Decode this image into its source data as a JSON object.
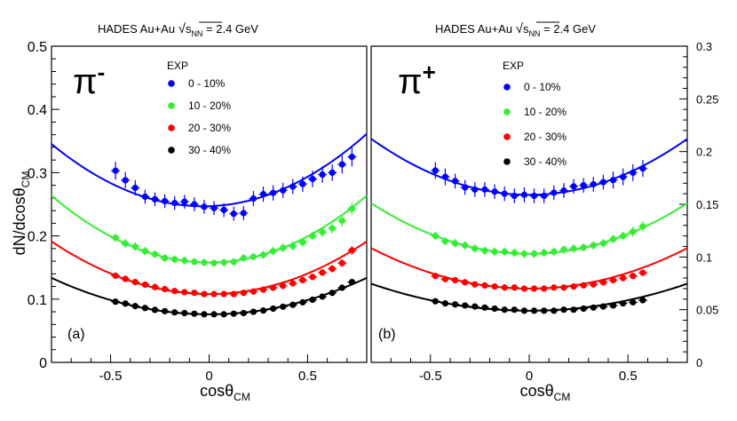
{
  "chart_data": [
    {
      "type": "scatter",
      "panel_label": "(a)",
      "header": {
        "experiment": "HADES",
        "system": "Au+Au",
        "energy": "= 2.4 GeV",
        "sqrt_symbol": "√",
        "sqrt_s": "s",
        "sqrt_sub": "NN"
      },
      "particle": {
        "symbol": "π",
        "charge": "-"
      },
      "xlabel": "cosθ",
      "xlabel_sub": "CM",
      "ylabel": "dN/dcosθ",
      "ylabel_sub": "CM",
      "xlim": [
        -0.8,
        0.8
      ],
      "ylim": [
        0,
        0.5
      ],
      "x_ticks": [
        "-0.5",
        "0",
        "0.5"
      ],
      "y_ticks": [
        "0",
        "0.1",
        "0.2",
        "0.3",
        "0.4",
        "0.5"
      ],
      "y_tick_values": [
        0,
        0.1,
        0.2,
        0.3,
        0.4,
        0.5
      ],
      "legend_title": "EXP",
      "legend_placement": "top-center",
      "series": [
        {
          "name": "0 - 10%",
          "color": "#0000ff",
          "fit": [
            0.247,
            0.01,
            0.166
          ],
          "x": [
            -0.475,
            -0.425,
            -0.375,
            -0.325,
            -0.275,
            -0.225,
            -0.175,
            -0.125,
            -0.075,
            -0.025,
            0.025,
            0.075,
            0.125,
            0.175,
            0.225,
            0.275,
            0.325,
            0.375,
            0.425,
            0.475,
            0.525,
            0.575,
            0.625,
            0.675,
            0.725
          ],
          "y": [
            0.303,
            0.288,
            0.276,
            0.262,
            0.258,
            0.255,
            0.252,
            0.254,
            0.25,
            0.246,
            0.244,
            0.241,
            0.235,
            0.236,
            0.259,
            0.266,
            0.268,
            0.272,
            0.278,
            0.282,
            0.29,
            0.297,
            0.3,
            0.313,
            0.325
          ],
          "err": [
            0.014,
            0.013,
            0.012,
            0.011,
            0.011,
            0.011,
            0.011,
            0.011,
            0.011,
            0.011,
            0.011,
            0.011,
            0.011,
            0.011,
            0.012,
            0.012,
            0.012,
            0.012,
            0.012,
            0.012,
            0.013,
            0.013,
            0.013,
            0.014,
            0.015
          ]
        },
        {
          "name": "10 - 20%",
          "color": "#33ee33",
          "fit": [
            0.158,
            0.0,
            0.165
          ],
          "x": [
            -0.475,
            -0.425,
            -0.375,
            -0.325,
            -0.275,
            -0.225,
            -0.175,
            -0.125,
            -0.075,
            -0.025,
            0.025,
            0.075,
            0.125,
            0.175,
            0.225,
            0.275,
            0.325,
            0.375,
            0.425,
            0.475,
            0.525,
            0.575,
            0.625,
            0.675,
            0.725
          ],
          "y": [
            0.197,
            0.188,
            0.183,
            0.176,
            0.171,
            0.165,
            0.163,
            0.161,
            0.159,
            0.158,
            0.157,
            0.158,
            0.159,
            0.165,
            0.167,
            0.17,
            0.176,
            0.181,
            0.184,
            0.19,
            0.2,
            0.206,
            0.212,
            0.224,
            0.243
          ],
          "err": [
            0.007,
            0.007,
            0.007,
            0.007,
            0.006,
            0.006,
            0.006,
            0.006,
            0.006,
            0.006,
            0.006,
            0.006,
            0.006,
            0.006,
            0.006,
            0.006,
            0.007,
            0.007,
            0.007,
            0.007,
            0.007,
            0.008,
            0.008,
            0.009,
            0.01
          ]
        },
        {
          "name": "20 - 30%",
          "color": "#ff0000",
          "fit": [
            0.108,
            0.0,
            0.13
          ],
          "x": [
            -0.475,
            -0.425,
            -0.375,
            -0.325,
            -0.275,
            -0.225,
            -0.175,
            -0.125,
            -0.075,
            -0.025,
            0.025,
            0.075,
            0.125,
            0.175,
            0.225,
            0.275,
            0.325,
            0.375,
            0.425,
            0.475,
            0.525,
            0.575,
            0.625,
            0.675,
            0.725
          ],
          "y": [
            0.137,
            0.132,
            0.127,
            0.123,
            0.119,
            0.116,
            0.113,
            0.111,
            0.11,
            0.108,
            0.108,
            0.108,
            0.108,
            0.11,
            0.112,
            0.115,
            0.118,
            0.121,
            0.125,
            0.13,
            0.135,
            0.142,
            0.148,
            0.157,
            0.177
          ],
          "err": [
            0.005,
            0.005,
            0.005,
            0.005,
            0.004,
            0.004,
            0.004,
            0.004,
            0.004,
            0.004,
            0.004,
            0.004,
            0.004,
            0.004,
            0.004,
            0.004,
            0.004,
            0.005,
            0.005,
            0.005,
            0.005,
            0.005,
            0.006,
            0.006,
            0.007
          ]
        },
        {
          "name": "30 - 40%",
          "color": "#000000",
          "fit": [
            0.076,
            0.0,
            0.09
          ],
          "x": [
            -0.475,
            -0.425,
            -0.375,
            -0.325,
            -0.275,
            -0.225,
            -0.175,
            -0.125,
            -0.075,
            -0.025,
            0.025,
            0.075,
            0.125,
            0.175,
            0.225,
            0.275,
            0.325,
            0.375,
            0.425,
            0.475,
            0.525,
            0.575,
            0.625,
            0.675,
            0.725
          ],
          "y": [
            0.096,
            0.093,
            0.089,
            0.086,
            0.083,
            0.081,
            0.079,
            0.078,
            0.077,
            0.076,
            0.076,
            0.076,
            0.077,
            0.078,
            0.08,
            0.082,
            0.085,
            0.088,
            0.091,
            0.095,
            0.099,
            0.104,
            0.11,
            0.118,
            0.127
          ],
          "err": [
            0.003,
            0.003,
            0.003,
            0.003,
            0.003,
            0.003,
            0.003,
            0.003,
            0.003,
            0.003,
            0.003,
            0.003,
            0.003,
            0.003,
            0.003,
            0.003,
            0.003,
            0.003,
            0.003,
            0.003,
            0.003,
            0.003,
            0.004,
            0.004,
            0.004
          ]
        }
      ]
    },
    {
      "type": "scatter",
      "panel_label": "(b)",
      "header": {
        "experiment": "HADES",
        "system": "Au+Au",
        "energy": "= 2.4 GeV",
        "sqrt_symbol": "√",
        "sqrt_s": "s",
        "sqrt_sub": "NN"
      },
      "particle": {
        "symbol": "π",
        "charge": "+"
      },
      "xlabel": "cosθ",
      "xlabel_sub": "CM",
      "ylabel": "",
      "ylabel_sub": "",
      "xlim": [
        -0.8,
        0.8
      ],
      "ylim": [
        0,
        0.3
      ],
      "x_ticks": [
        "-0.5",
        "0",
        "0.5"
      ],
      "y_ticks": [
        "0",
        "0.05",
        "0.1",
        "0.15",
        "0.2",
        "0.25",
        "0.3"
      ],
      "y_tick_values": [
        0,
        0.05,
        0.1,
        0.15,
        0.2,
        0.25,
        0.3
      ],
      "legend_title": "EXP",
      "legend_placement": "top-center",
      "series": [
        {
          "name": "0 - 10%",
          "color": "#0000ff",
          "fit": [
            0.159,
            0.0,
            0.083
          ],
          "x": [
            -0.475,
            -0.425,
            -0.375,
            -0.325,
            -0.275,
            -0.225,
            -0.175,
            -0.125,
            -0.075,
            -0.025,
            0.025,
            0.075,
            0.125,
            0.175,
            0.225,
            0.275,
            0.325,
            0.375,
            0.425,
            0.475,
            0.525,
            0.575
          ],
          "y": [
            0.182,
            0.176,
            0.172,
            0.166,
            0.164,
            0.164,
            0.162,
            0.16,
            0.158,
            0.159,
            0.158,
            0.158,
            0.161,
            0.163,
            0.167,
            0.168,
            0.169,
            0.171,
            0.173,
            0.176,
            0.18,
            0.184
          ],
          "err": [
            0.008,
            0.008,
            0.007,
            0.007,
            0.007,
            0.007,
            0.007,
            0.007,
            0.007,
            0.007,
            0.007,
            0.007,
            0.007,
            0.007,
            0.007,
            0.007,
            0.007,
            0.007,
            0.008,
            0.008,
            0.008,
            0.008
          ]
        },
        {
          "name": "10 - 20%",
          "color": "#33ee33",
          "fit": [
            0.103,
            0.0,
            0.075
          ],
          "x": [
            -0.475,
            -0.425,
            -0.375,
            -0.325,
            -0.275,
            -0.225,
            -0.175,
            -0.125,
            -0.075,
            -0.025,
            0.025,
            0.075,
            0.125,
            0.175,
            0.225,
            0.275,
            0.325,
            0.375,
            0.425,
            0.475,
            0.525,
            0.575
          ],
          "y": [
            0.12,
            0.115,
            0.113,
            0.111,
            0.108,
            0.106,
            0.105,
            0.105,
            0.104,
            0.103,
            0.103,
            0.104,
            0.105,
            0.107,
            0.108,
            0.109,
            0.111,
            0.113,
            0.117,
            0.12,
            0.124,
            0.129
          ],
          "err": [
            0.004,
            0.004,
            0.004,
            0.004,
            0.004,
            0.004,
            0.004,
            0.004,
            0.004,
            0.004,
            0.004,
            0.004,
            0.004,
            0.004,
            0.004,
            0.004,
            0.004,
            0.004,
            0.004,
            0.004,
            0.005,
            0.005
          ]
        },
        {
          "name": "20 - 30%",
          "color": "#ff0000",
          "fit": [
            0.07,
            0.0,
            0.06
          ],
          "x": [
            -0.475,
            -0.425,
            -0.375,
            -0.325,
            -0.275,
            -0.225,
            -0.175,
            -0.125,
            -0.075,
            -0.025,
            0.025,
            0.075,
            0.125,
            0.175,
            0.225,
            0.275,
            0.325,
            0.375,
            0.425,
            0.475,
            0.525,
            0.575
          ],
          "y": [
            0.082,
            0.079,
            0.078,
            0.076,
            0.074,
            0.073,
            0.072,
            0.071,
            0.071,
            0.07,
            0.07,
            0.07,
            0.071,
            0.071,
            0.072,
            0.073,
            0.074,
            0.076,
            0.078,
            0.08,
            0.082,
            0.085
          ],
          "err": [
            0.003,
            0.003,
            0.003,
            0.003,
            0.003,
            0.003,
            0.003,
            0.003,
            0.003,
            0.003,
            0.003,
            0.003,
            0.003,
            0.003,
            0.003,
            0.003,
            0.003,
            0.003,
            0.003,
            0.003,
            0.003,
            0.003
          ]
        },
        {
          "name": "30 - 40%",
          "color": "#000000",
          "fit": [
            0.049,
            0.0,
            0.04
          ],
          "x": [
            -0.475,
            -0.425,
            -0.375,
            -0.325,
            -0.275,
            -0.225,
            -0.175,
            -0.125,
            -0.075,
            -0.025,
            0.025,
            0.075,
            0.125,
            0.175,
            0.225,
            0.275,
            0.325,
            0.375,
            0.425,
            0.475,
            0.525,
            0.575
          ],
          "y": [
            0.058,
            0.056,
            0.055,
            0.054,
            0.053,
            0.052,
            0.051,
            0.05,
            0.05,
            0.049,
            0.049,
            0.049,
            0.049,
            0.05,
            0.05,
            0.051,
            0.052,
            0.053,
            0.054,
            0.056,
            0.057,
            0.059
          ],
          "err": [
            0.002,
            0.002,
            0.002,
            0.002,
            0.002,
            0.002,
            0.002,
            0.002,
            0.002,
            0.002,
            0.002,
            0.002,
            0.002,
            0.002,
            0.002,
            0.002,
            0.002,
            0.002,
            0.002,
            0.002,
            0.002,
            0.002
          ]
        }
      ]
    }
  ]
}
